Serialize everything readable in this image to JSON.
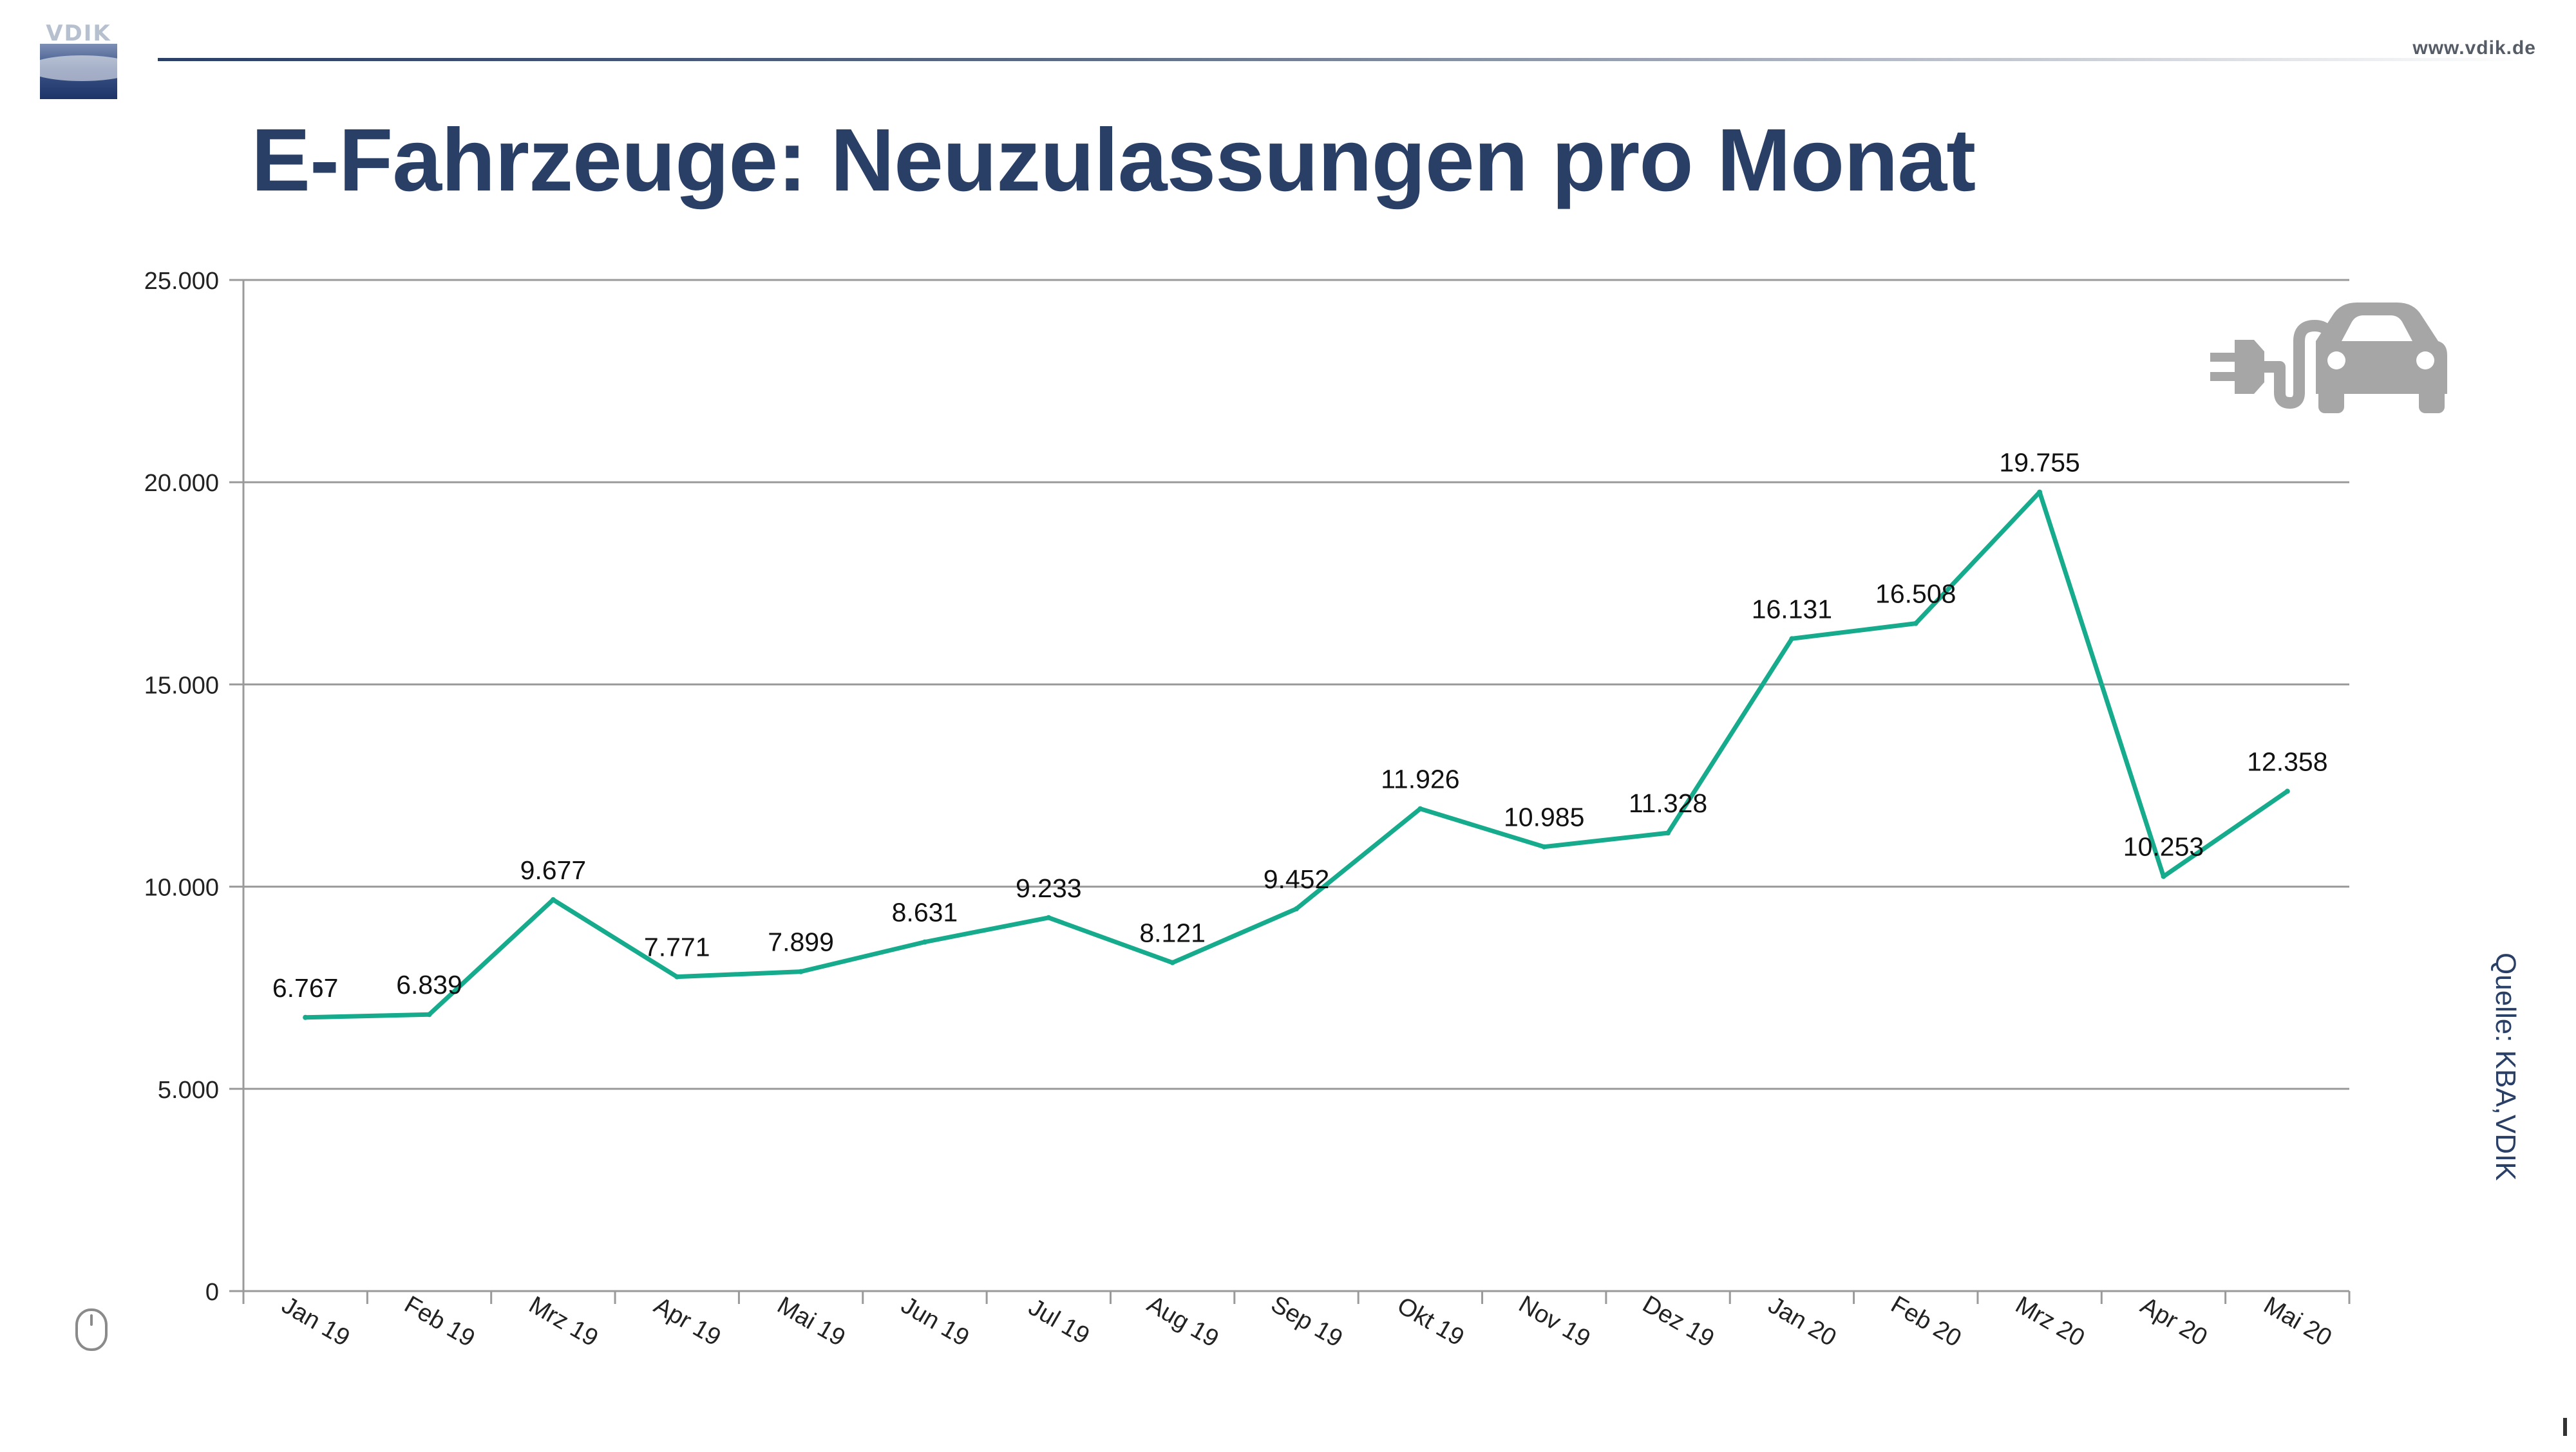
{
  "header": {
    "logo_text": "VDIK",
    "site": "www.vdik.de",
    "title": "E-Fahrzeuge: Neuzulassungen pro Monat"
  },
  "source": "Quelle:  KBA,VDIK",
  "page_number": "1",
  "icons": {
    "car": "ev-car-plug-icon",
    "mouse": "mouse-icon"
  },
  "colors": {
    "title": "#2a3f66",
    "series": "#16ab8c",
    "grid": "#9a9a9a",
    "icon": "#a6a6a6"
  },
  "chart_data": {
    "type": "line",
    "title": "E-Fahrzeuge: Neuzulassungen pro Monat",
    "xlabel": "",
    "ylabel": "",
    "categories": [
      "Jan 19",
      "Feb 19",
      "Mrz 19",
      "Apr 19",
      "Mai 19",
      "Jun 19",
      "Jul 19",
      "Aug 19",
      "Sep 19",
      "Okt 19",
      "Nov 19",
      "Dez 19",
      "Jan 20",
      "Feb 20",
      "Mrz 20",
      "Apr 20",
      "Mai 20"
    ],
    "values": [
      6767,
      6839,
      9677,
      7771,
      7899,
      8631,
      9233,
      8121,
      9452,
      11926,
      10985,
      11328,
      16131,
      16508,
      19755,
      10253,
      12358
    ],
    "value_labels": [
      "6.767",
      "6.839",
      "9.677",
      "7.771",
      "7.899",
      "8.631",
      "9.233",
      "8.121",
      "9.452",
      "11.926",
      "10.985",
      "11.328",
      "16.131",
      "16.508",
      "19.755",
      "10.253",
      "12.358"
    ],
    "ylim": [
      0,
      25000
    ],
    "y_ticks": [
      0,
      5000,
      10000,
      15000,
      20000,
      25000
    ],
    "y_tick_labels": [
      "0",
      "5.000",
      "10.000",
      "15.000",
      "20.000",
      "25.000"
    ],
    "grid": true,
    "legend": "none"
  }
}
